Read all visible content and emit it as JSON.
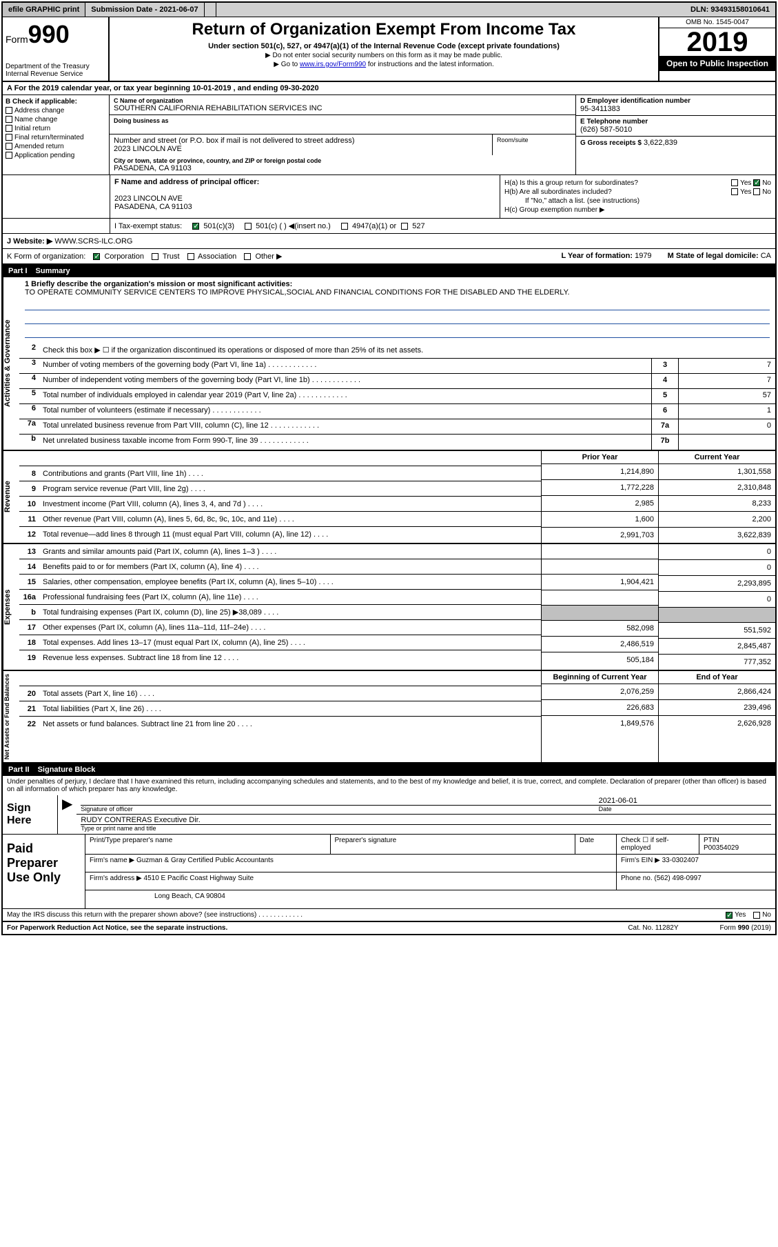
{
  "topbar": {
    "efile": "efile GRAPHIC print",
    "submission_label": "Submission Date - 2021-06-07",
    "dln": "DLN: 93493158010641"
  },
  "header": {
    "form_prefix": "Form",
    "form_num": "990",
    "dept": "Department of the Treasury\nInternal Revenue Service",
    "title": "Return of Organization Exempt From Income Tax",
    "subtitle": "Under section 501(c), 527, or 4947(a)(1) of the Internal Revenue Code (except private foundations)",
    "note1": "▶ Do not enter social security numbers on this form as it may be made public.",
    "note2_pre": "▶ Go to ",
    "note2_link": "www.irs.gov/Form990",
    "note2_post": " for instructions and the latest information.",
    "omb": "OMB No. 1545-0047",
    "year": "2019",
    "inspection": "Open to Public Inspection"
  },
  "row_a": "A For the 2019 calendar year, or tax year beginning 10-01-2019   , and ending 09-30-2020",
  "section_b": {
    "label": "B Check if applicable:",
    "items": [
      "Address change",
      "Name change",
      "Initial return",
      "Final return/terminated",
      "Amended return",
      "Application pending"
    ]
  },
  "section_c": {
    "name_label": "C Name of organization",
    "name": "SOUTHERN CALIFORNIA REHABILITATION SERVICES INC",
    "dba_label": "Doing business as",
    "addr_label": "Number and street (or P.O. box if mail is not delivered to street address)",
    "addr": "2023 LINCOLN AVE",
    "room_label": "Room/suite",
    "city_label": "City or town, state or province, country, and ZIP or foreign postal code",
    "city": "PASADENA, CA  91103"
  },
  "section_d": {
    "label": "D Employer identification number",
    "value": "95-3411383"
  },
  "section_e": {
    "label": "E Telephone number",
    "value": "(626) 587-5010"
  },
  "section_g": {
    "label": "G Gross receipts $",
    "value": "3,622,839"
  },
  "section_f": {
    "label": "F  Name and address of principal officer:",
    "addr1": "2023 LINCOLN AVE",
    "addr2": "PASADENA, CA  91103"
  },
  "section_h": {
    "ha": "H(a)  Is this a group return for subordinates?",
    "hb": "H(b)  Are all subordinates included?",
    "hb_note": "If \"No,\" attach a list. (see instructions)",
    "hc": "H(c)  Group exemption number ▶",
    "yes": "Yes",
    "no": "No"
  },
  "row_i": {
    "label": "I  Tax-exempt status:",
    "opt1": "501(c)(3)",
    "opt2": "501(c) (  ) ◀(insert no.)",
    "opt3": "4947(a)(1) or",
    "opt4": "527"
  },
  "row_j": {
    "label": "J  Website: ▶",
    "value": "WWW.SCRS-ILC.ORG"
  },
  "row_k": {
    "label": "K Form of organization:",
    "opts": [
      "Corporation",
      "Trust",
      "Association",
      "Other ▶"
    ],
    "l_label": "L Year of formation:",
    "l_val": "1979",
    "m_label": "M State of legal domicile:",
    "m_val": "CA"
  },
  "part1": {
    "num": "Part I",
    "title": "Summary"
  },
  "mission": {
    "label": "1  Briefly describe the organization's mission or most significant activities:",
    "text": "TO OPERATE COMMUNITY SERVICE CENTERS TO IMPROVE PHYSICAL,SOCIAL AND FINANCIAL CONDITIONS FOR THE DISABLED AND THE ELDERLY."
  },
  "gov_lines": {
    "l2": "Check this box ▶ ☐ if the organization discontinued its operations or disposed of more than 25% of its net assets.",
    "l3": {
      "text": "Number of voting members of the governing body (Part VI, line 1a)",
      "box": "3",
      "val": "7"
    },
    "l4": {
      "text": "Number of independent voting members of the governing body (Part VI, line 1b)",
      "box": "4",
      "val": "7"
    },
    "l5": {
      "text": "Total number of individuals employed in calendar year 2019 (Part V, line 2a)",
      "box": "5",
      "val": "57"
    },
    "l6": {
      "text": "Total number of volunteers (estimate if necessary)",
      "box": "6",
      "val": "1"
    },
    "l7a": {
      "text": "Total unrelated business revenue from Part VIII, column (C), line 12",
      "box": "7a",
      "val": "0"
    },
    "l7b": {
      "text": "Net unrelated business taxable income from Form 990-T, line 39",
      "box": "7b",
      "val": ""
    }
  },
  "fin_headers": {
    "prior": "Prior Year",
    "current": "Current Year",
    "begin": "Beginning of Current Year",
    "end": "End of Year"
  },
  "revenue": [
    {
      "n": "8",
      "t": "Contributions and grants (Part VIII, line 1h)",
      "p": "1,214,890",
      "c": "1,301,558"
    },
    {
      "n": "9",
      "t": "Program service revenue (Part VIII, line 2g)",
      "p": "1,772,228",
      "c": "2,310,848"
    },
    {
      "n": "10",
      "t": "Investment income (Part VIII, column (A), lines 3, 4, and 7d )",
      "p": "2,985",
      "c": "8,233"
    },
    {
      "n": "11",
      "t": "Other revenue (Part VIII, column (A), lines 5, 6d, 8c, 9c, 10c, and 11e)",
      "p": "1,600",
      "c": "2,200"
    },
    {
      "n": "12",
      "t": "Total revenue—add lines 8 through 11 (must equal Part VIII, column (A), line 12)",
      "p": "2,991,703",
      "c": "3,622,839"
    }
  ],
  "expenses": [
    {
      "n": "13",
      "t": "Grants and similar amounts paid (Part IX, column (A), lines 1–3 )",
      "p": "",
      "c": "0"
    },
    {
      "n": "14",
      "t": "Benefits paid to or for members (Part IX, column (A), line 4)",
      "p": "",
      "c": "0"
    },
    {
      "n": "15",
      "t": "Salaries, other compensation, employee benefits (Part IX, column (A), lines 5–10)",
      "p": "1,904,421",
      "c": "2,293,895"
    },
    {
      "n": "16a",
      "t": "Professional fundraising fees (Part IX, column (A), line 11e)",
      "p": "",
      "c": "0"
    },
    {
      "n": "b",
      "t": "Total fundraising expenses (Part IX, column (D), line 25) ▶38,089",
      "p": "GRAY",
      "c": "GRAY"
    },
    {
      "n": "17",
      "t": "Other expenses (Part IX, column (A), lines 11a–11d, 11f–24e)",
      "p": "582,098",
      "c": "551,592"
    },
    {
      "n": "18",
      "t": "Total expenses. Add lines 13–17 (must equal Part IX, column (A), line 25)",
      "p": "2,486,519",
      "c": "2,845,487"
    },
    {
      "n": "19",
      "t": "Revenue less expenses. Subtract line 18 from line 12",
      "p": "505,184",
      "c": "777,352"
    }
  ],
  "netassets": [
    {
      "n": "20",
      "t": "Total assets (Part X, line 16)",
      "p": "2,076,259",
      "c": "2,866,424"
    },
    {
      "n": "21",
      "t": "Total liabilities (Part X, line 26)",
      "p": "226,683",
      "c": "239,496"
    },
    {
      "n": "22",
      "t": "Net assets or fund balances. Subtract line 21 from line 20",
      "p": "1,849,576",
      "c": "2,626,928"
    }
  ],
  "side_labels": {
    "gov": "Activities & Governance",
    "rev": "Revenue",
    "exp": "Expenses",
    "net": "Net Assets or Fund Balances"
  },
  "part2": {
    "num": "Part II",
    "title": "Signature Block"
  },
  "sig": {
    "declare": "Under penalties of perjury, I declare that I have examined this return, including accompanying schedules and statements, and to the best of my knowledge and belief, it is true, correct, and complete. Declaration of preparer (other than officer) is based on all information of which preparer has any knowledge.",
    "here": "Sign Here",
    "sig_label": "Signature of officer",
    "date_label": "Date",
    "date": "2021-06-01",
    "name": "RUDY CONTRERAS Executive Dir.",
    "name_label": "Type or print name and title"
  },
  "preparer": {
    "label": "Paid Preparer Use Only",
    "name_label": "Print/Type preparer's name",
    "sig_label": "Preparer's signature",
    "date_label": "Date",
    "check_label": "Check ☐ if self-employed",
    "ptin_label": "PTIN",
    "ptin": "P00354029",
    "firm_label": "Firm's name    ▶",
    "firm": "Guzman & Gray Certified Public Accountants",
    "ein_label": "Firm's EIN ▶",
    "ein": "33-0302407",
    "addr_label": "Firm's address ▶",
    "addr1": "4510 E Pacific Coast Highway Suite",
    "addr2": "Long Beach, CA  90804",
    "phone_label": "Phone no.",
    "phone": "(562) 498-0997"
  },
  "footer": {
    "discuss": "May the IRS discuss this return with the preparer shown above? (see instructions)",
    "yes": "Yes",
    "no": "No",
    "paperwork": "For Paperwork Reduction Act Notice, see the separate instructions.",
    "cat": "Cat. No. 11282Y",
    "form": "Form 990 (2019)"
  }
}
